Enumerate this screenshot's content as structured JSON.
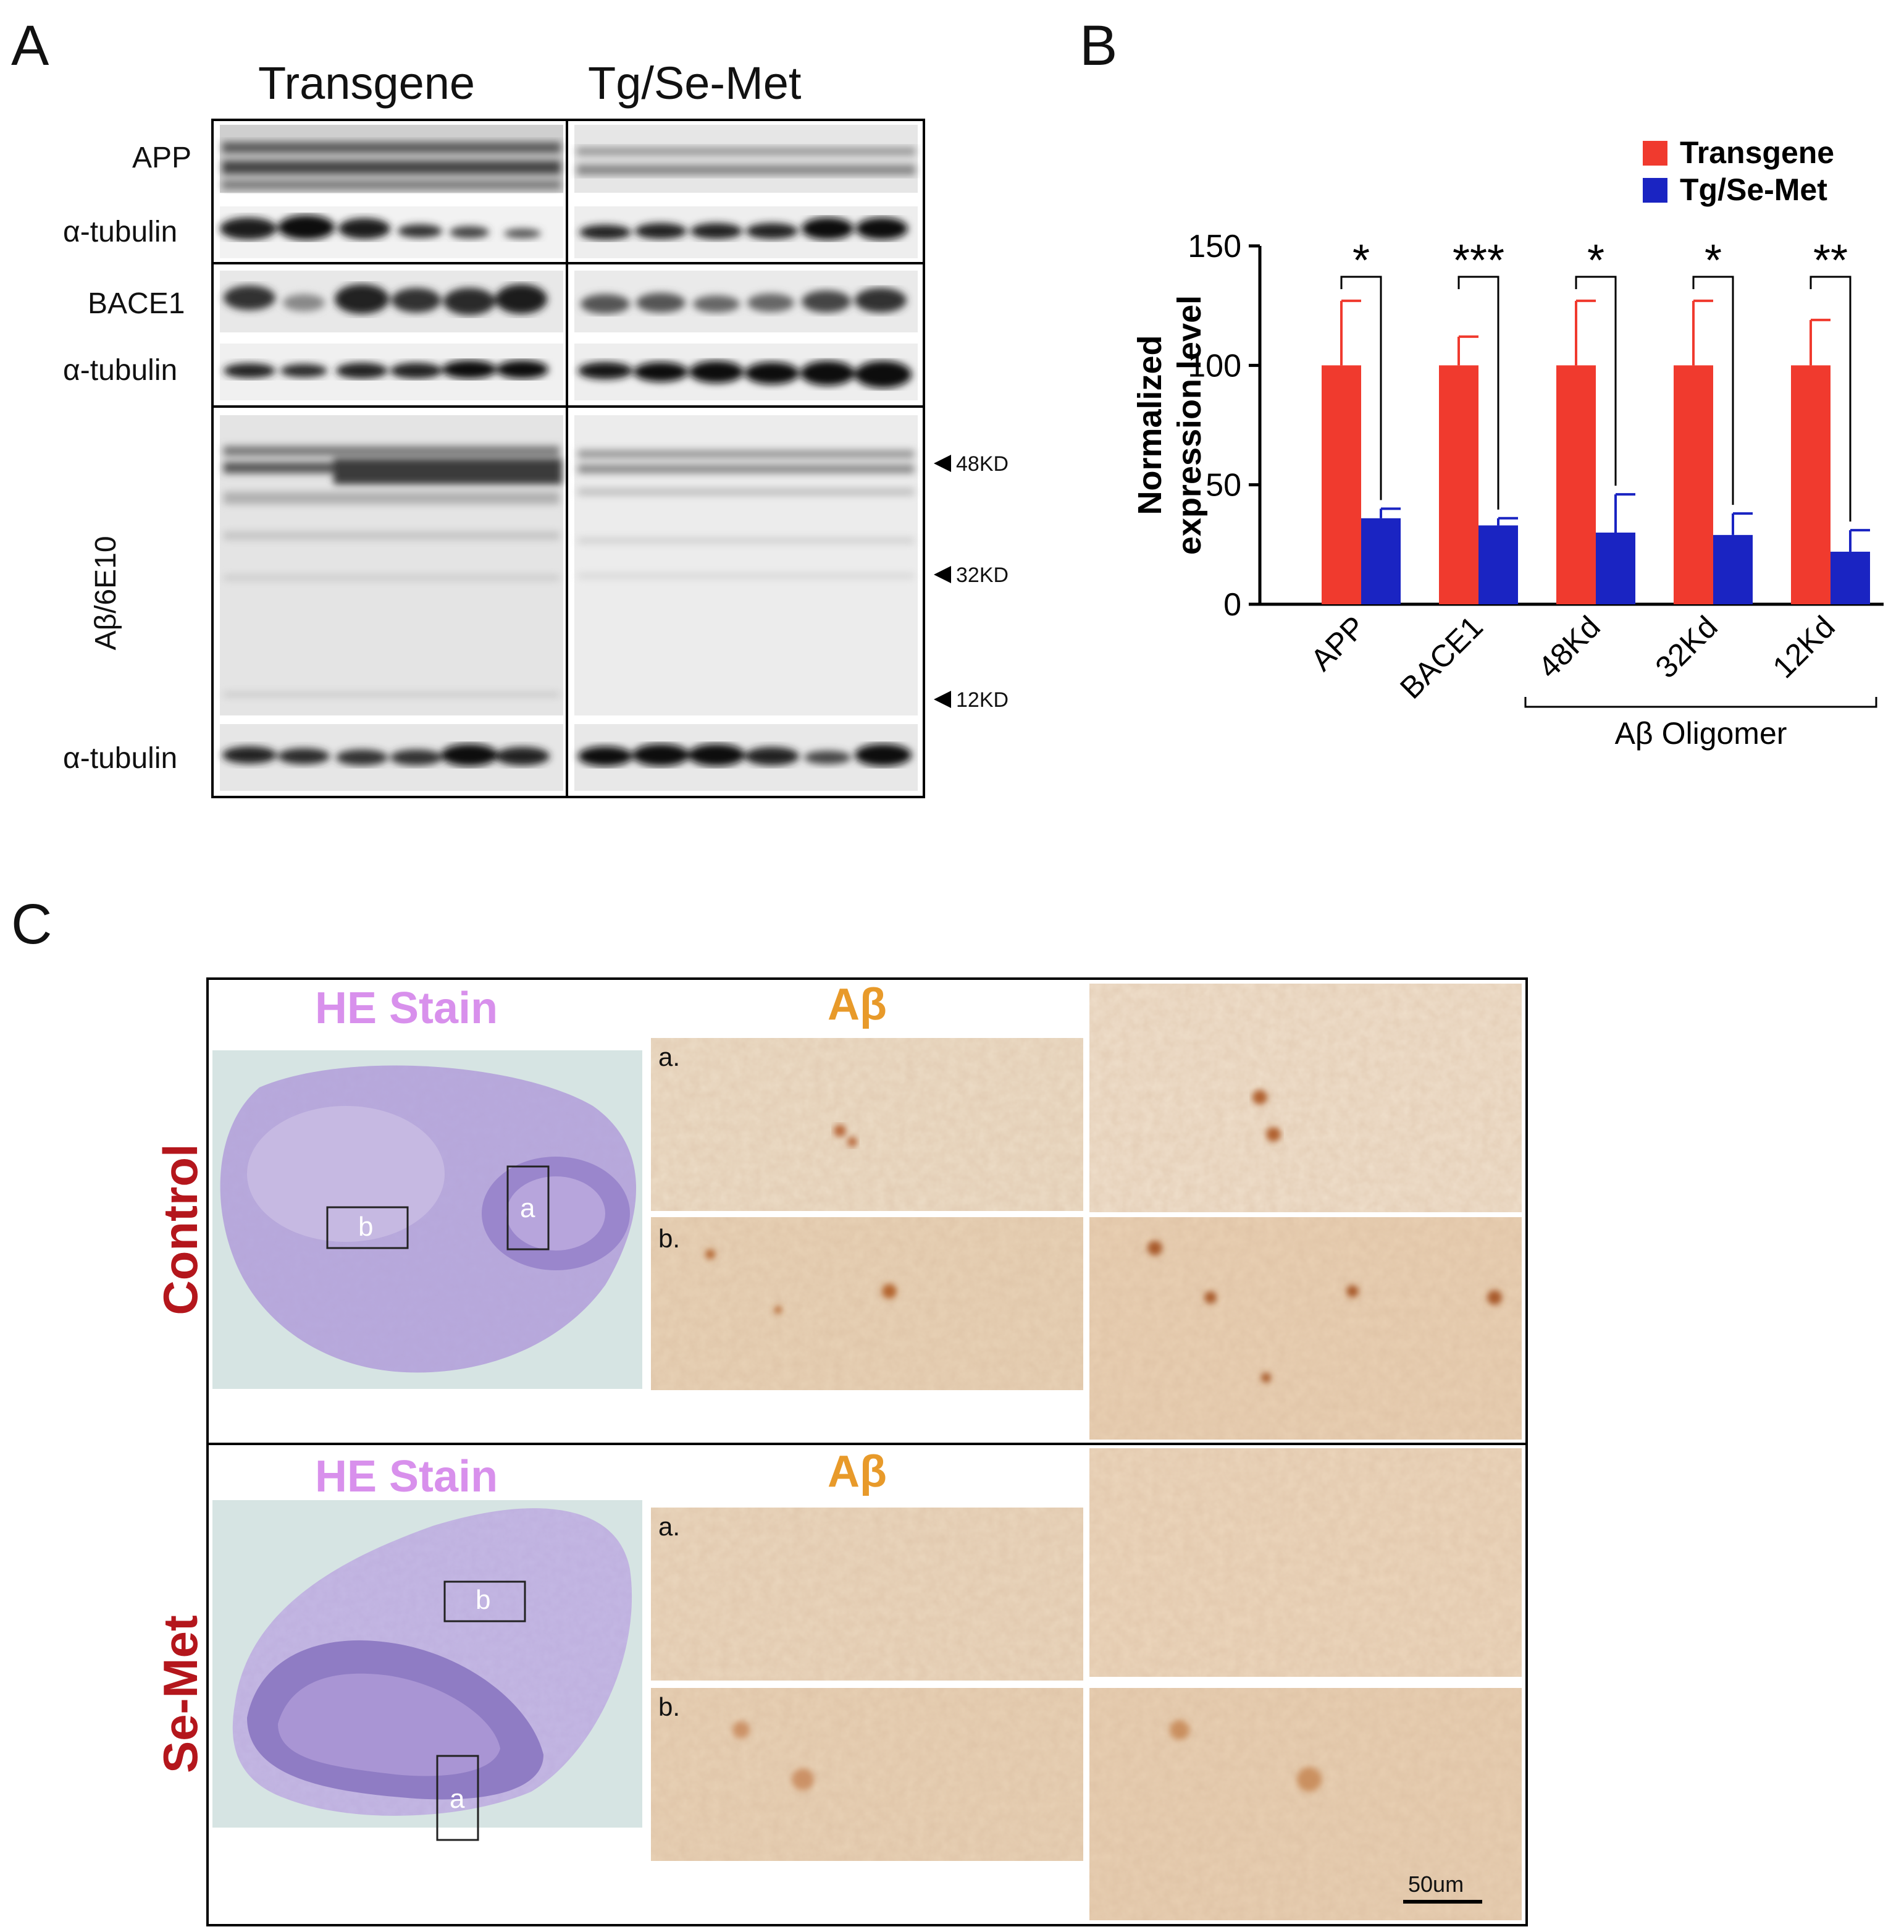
{
  "panels": {
    "a": "A",
    "b": "B",
    "c": "C"
  },
  "western_blot": {
    "group_labels": [
      "Transgene",
      "Tg/Se-Met"
    ],
    "row_labels": {
      "app": "APP",
      "tubulin": "α-tubulin",
      "bace1": "BACE1",
      "abeta": "Aβ/6E10"
    },
    "markers": [
      "48KD",
      "32KD",
      "12KD"
    ]
  },
  "chart_data": {
    "type": "bar",
    "categories": [
      "APP",
      "BACE1",
      "48Kd",
      "32Kd",
      "12Kd"
    ],
    "ylabel": "Normalized\nexpression level",
    "ylabel_lines": [
      "Normalized",
      "expression level"
    ],
    "ylim": [
      0,
      150
    ],
    "yticks": [
      "0",
      "50",
      "100",
      "150"
    ],
    "series": [
      {
        "name": "Transgene",
        "color": "#f03a2e",
        "values": [
          100,
          100,
          100,
          100,
          100
        ],
        "errors": [
          27,
          12,
          27,
          27,
          19
        ]
      },
      {
        "name": "Tg/Se-Met",
        "color": "#1a24c2",
        "values": [
          36,
          33,
          30,
          29,
          22
        ],
        "errors": [
          4,
          3,
          16,
          9,
          9
        ]
      }
    ],
    "significance": [
      "*",
      "***",
      "*",
      "*",
      "**"
    ],
    "group_bracket": {
      "label": "Aβ Oligomer",
      "categories": [
        "48Kd",
        "32Kd",
        "12Kd"
      ]
    },
    "legend_position": "top-right",
    "grid": false
  },
  "histology": {
    "he_stain": "HE Stain",
    "abeta_stain": "Aβ",
    "conditions": [
      "Control",
      "Se-Met"
    ],
    "sub_labels": [
      "a.",
      "b."
    ],
    "box_labels": [
      "a",
      "b"
    ],
    "scale_bar": "50um",
    "colors": {
      "he": "#d890ec",
      "abeta": "#e89a2a",
      "condition": "#b4161c"
    }
  }
}
